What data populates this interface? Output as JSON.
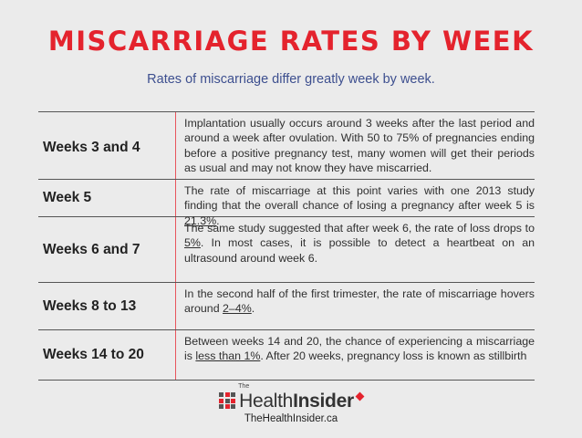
{
  "title": "MISCARRIAGE RATES BY WEEK",
  "subtitle": "Rates of miscarriage differ greatly week by week.",
  "rows": [
    {
      "label": "Weeks 3 and 4",
      "text": "Implantation usually occurs around 3 weeks after the last period and around a week after ovulation. With 50 to 75% of pregnancies ending before a positive pregnancy test, many women will get their periods as usual and may not know they have miscarried."
    },
    {
      "label": "Week 5",
      "text": "The rate of miscarriage at this point varies with one 2013 study finding that the overall chance of losing a pregnancy after week 5 is ",
      "link": "21.3%",
      "after": "."
    },
    {
      "label": "Weeks 6 and 7",
      "text": "The same study suggested that after week 6, the rate of loss drops to ",
      "link": "5%",
      "after": ". In most cases, it is possible to detect a heartbeat on an ultrasound around week 6."
    },
    {
      "label": "Weeks 8 to 13",
      "text": "In the second half of the first trimester, the rate of miscarriage hovers around ",
      "link": "2–4%",
      "after": "."
    },
    {
      "label": "Weeks 14 to 20",
      "text": "Between weeks 14 and 20, the chance of experiencing a miscarriage is ",
      "link": "less than 1%",
      "after": ". After 20 weeks, pregnancy loss is known as stillbirth"
    }
  ],
  "logo": {
    "the": "The",
    "health": "Health",
    "insider": "Insider",
    "icon": "grid-dots-icon",
    "leaf_icon": "maple-leaf-icon",
    "accent": "#e4232d"
  },
  "url": "TheHealthInsider.ca",
  "colors": {
    "title": "#e4232d",
    "subtitle": "#3d4f8f",
    "background": "#ebebeb",
    "divider": "#e8545c"
  }
}
